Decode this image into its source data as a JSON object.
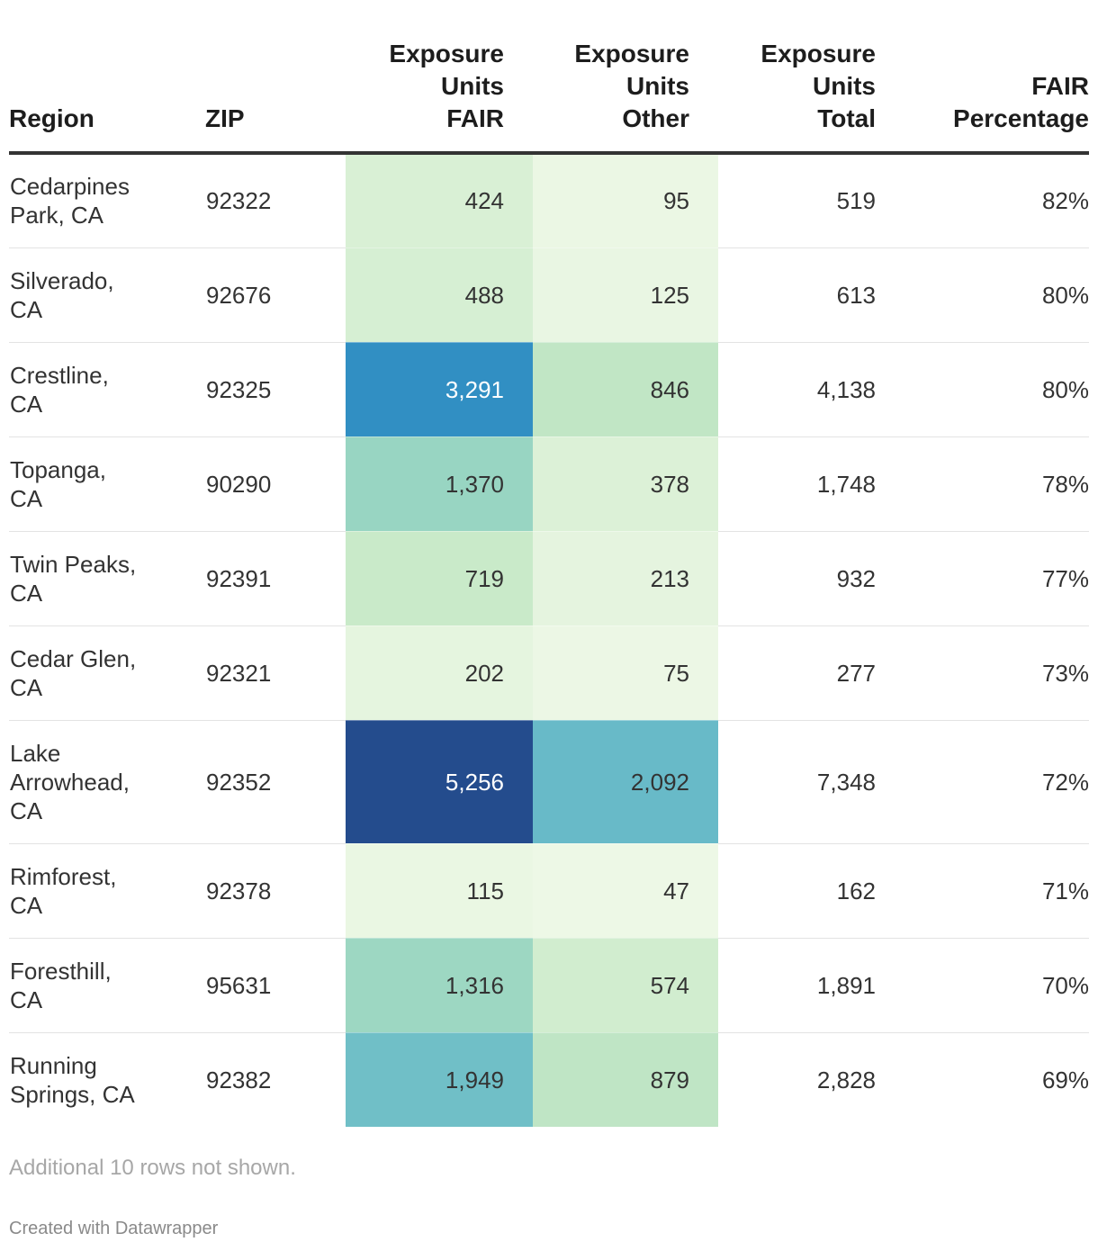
{
  "chart_data": {
    "type": "table",
    "columns": [
      "Region",
      "ZIP",
      "Exposure Units FAIR",
      "Exposure Units Other",
      "Exposure Units Total",
      "FAIR Percentage"
    ],
    "header_lines": {
      "region": [
        "Region"
      ],
      "zip": [
        "ZIP"
      ],
      "fair": [
        "Exposure",
        "Units",
        "FAIR"
      ],
      "other": [
        "Exposure",
        "Units",
        "Other"
      ],
      "total": [
        "Exposure",
        "Units",
        "Total"
      ],
      "pct": [
        "FAIR",
        "Percentage"
      ]
    },
    "rows": [
      {
        "region": [
          "Cedarpines",
          "Park, CA"
        ],
        "zip": "92322",
        "fair": "424",
        "other": "95",
        "total": "519",
        "pct": "82%"
      },
      {
        "region": [
          "Silverado,",
          "CA"
        ],
        "zip": "92676",
        "fair": "488",
        "other": "125",
        "total": "613",
        "pct": "80%"
      },
      {
        "region": [
          "Crestline,",
          "CA"
        ],
        "zip": "92325",
        "fair": "3,291",
        "other": "846",
        "total": "4,138",
        "pct": "80%"
      },
      {
        "region": [
          "Topanga,",
          "CA"
        ],
        "zip": "90290",
        "fair": "1,370",
        "other": "378",
        "total": "1,748",
        "pct": "78%"
      },
      {
        "region": [
          "Twin Peaks,",
          "CA"
        ],
        "zip": "92391",
        "fair": "719",
        "other": "213",
        "total": "932",
        "pct": "77%"
      },
      {
        "region": [
          "Cedar Glen,",
          "CA"
        ],
        "zip": "92321",
        "fair": "202",
        "other": "75",
        "total": "277",
        "pct": "73%"
      },
      {
        "region": [
          "Lake",
          "Arrowhead,",
          "CA"
        ],
        "zip": "92352",
        "fair": "5,256",
        "other": "2,092",
        "total": "7,348",
        "pct": "72%"
      },
      {
        "region": [
          "Rimforest,",
          "CA"
        ],
        "zip": "92378",
        "fair": "115",
        "other": "47",
        "total": "162",
        "pct": "71%"
      },
      {
        "region": [
          "Foresthill,",
          "CA"
        ],
        "zip": "95631",
        "fair": "1,316",
        "other": "574",
        "total": "1,891",
        "pct": "70%"
      },
      {
        "region": [
          "Running",
          "Springs, CA"
        ],
        "zip": "92382",
        "fair": "1,949",
        "other": "879",
        "total": "2,828",
        "pct": "69%"
      }
    ],
    "heatmap_columns": [
      "fair",
      "other"
    ],
    "color_scale": {
      "stops": [
        {
          "value": 0,
          "color": "#f0f9e8"
        },
        {
          "value": 800,
          "color": "#c5e8c5"
        },
        {
          "value": 1400,
          "color": "#96d4c2"
        },
        {
          "value": 2000,
          "color": "#6cbdc8"
        },
        {
          "value": 3300,
          "color": "#318fc3"
        },
        {
          "value": 5300,
          "color": "#244b8c"
        }
      ],
      "light_text_color": "#ffffff",
      "dark_text_color": "#333333",
      "light_text_threshold": 2500
    }
  },
  "notes": "Additional 10 rows not shown.",
  "credit": "Created with Datawrapper"
}
